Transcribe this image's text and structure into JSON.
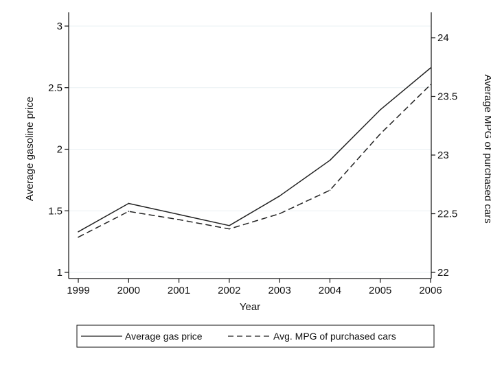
{
  "chart_data": {
    "type": "line",
    "title": "",
    "xlabel": "Year",
    "x": [
      1999,
      2000,
      2001,
      2002,
      2003,
      2004,
      2005,
      2006
    ],
    "xlim": [
      1999,
      2006
    ],
    "y_left": {
      "label": "Average gasoline price",
      "ylim": [
        1,
        3
      ],
      "ticks": [
        1,
        1.5,
        2,
        2.5,
        3
      ],
      "tick_labels": [
        "1",
        "1.5",
        "2",
        "2.5",
        "3"
      ]
    },
    "y_right": {
      "label": "Average MPG of purchased cars",
      "ylim": [
        22,
        24.1
      ],
      "ticks": [
        22,
        22.5,
        23,
        23.5,
        24
      ],
      "tick_labels": [
        "22",
        "22.5",
        "23",
        "23.5",
        "24"
      ]
    },
    "series": [
      {
        "name": "Average gas price",
        "axis": "left",
        "style": "solid",
        "values": [
          1.33,
          1.56,
          1.47,
          1.38,
          1.62,
          1.91,
          2.32,
          2.66
        ]
      },
      {
        "name": "Avg. MPG of purchased cars",
        "axis": "right",
        "style": "dashed",
        "values": [
          22.3,
          22.52,
          22.45,
          22.37,
          22.5,
          22.7,
          23.18,
          23.6
        ]
      }
    ],
    "grid": "horizontal",
    "legend": "bottom",
    "colors": {
      "line": "#222222",
      "grid": "#eaf0f3",
      "axis": "#111111"
    }
  }
}
